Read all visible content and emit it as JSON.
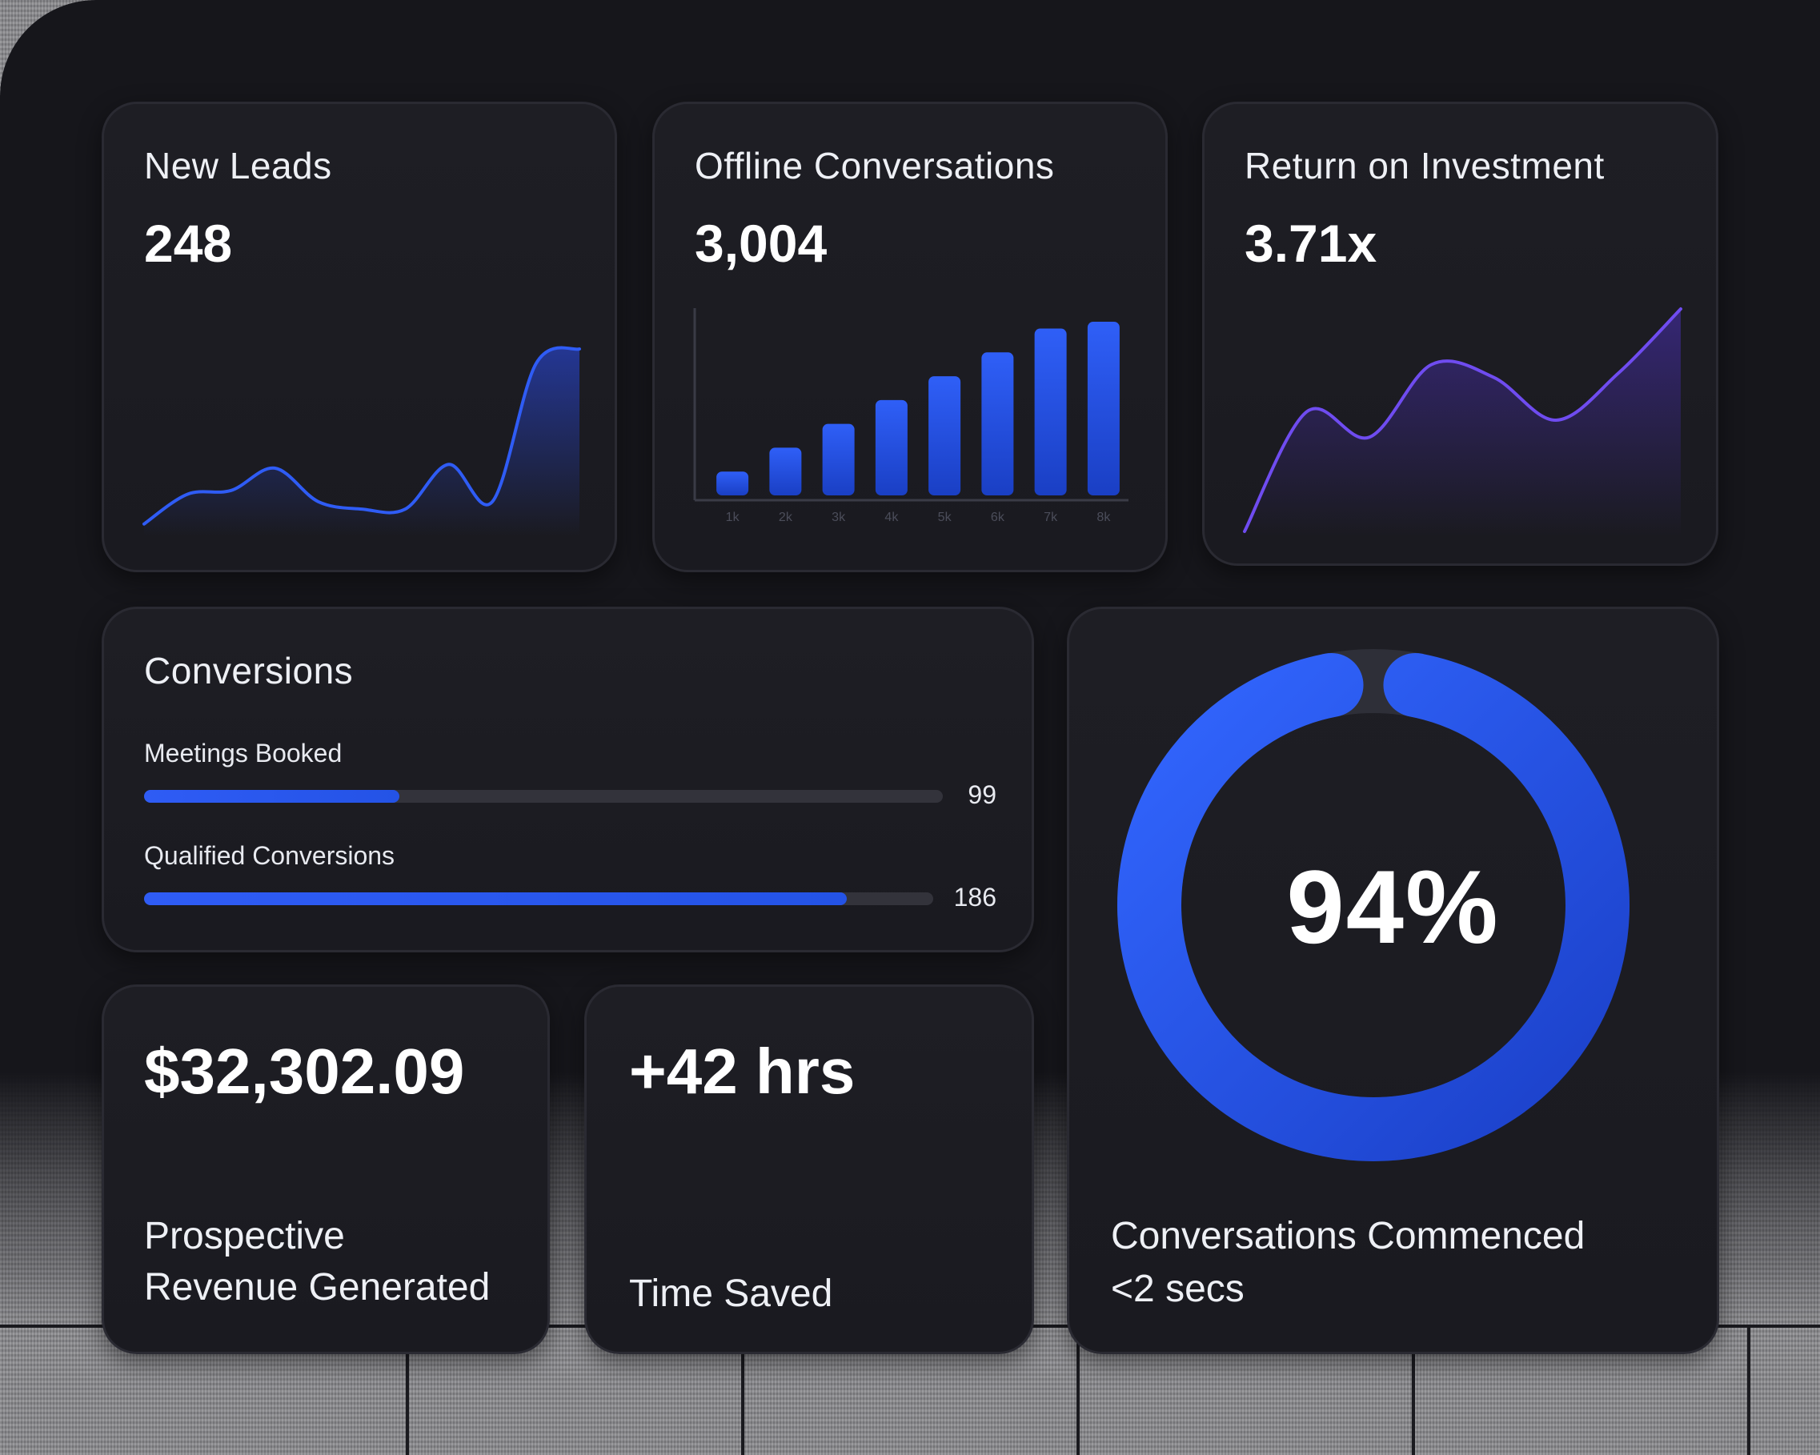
{
  "colors": {
    "accent": "#2f5cf5",
    "accent_dark": "#1c3fc2",
    "roi_line": "#6f4cf0",
    "panel": "#16161b",
    "card": "#1e1e24",
    "track": "#33333b"
  },
  "new_leads": {
    "title": "New Leads",
    "value": "248",
    "chart_data": {
      "type": "area",
      "series": [
        {
          "values": [
            2,
            10,
            11,
            17,
            8,
            6,
            6,
            18,
            8,
            45,
            49
          ]
        }
      ]
    }
  },
  "offline_conversations": {
    "title": "Offline Conversations",
    "value": "3,004",
    "chart_data": {
      "type": "bar",
      "categories": [
        "1k",
        "2k",
        "3k",
        "4k",
        "5k",
        "6k",
        "7k",
        "8k"
      ],
      "values": [
        14,
        28,
        42,
        56,
        70,
        84,
        98,
        102
      ],
      "ylim": [
        0,
        110
      ]
    }
  },
  "roi": {
    "title": "Return on Investment",
    "value": "3.71x",
    "chart_data": {
      "type": "area",
      "series": [
        {
          "values": [
            0,
            28,
            22,
            39,
            36,
            26,
            37,
            52
          ]
        }
      ]
    }
  },
  "conversions": {
    "title": "Conversions",
    "items": [
      {
        "label": "Meetings Booked",
        "value": "99",
        "progress": 0.32
      },
      {
        "label": "Qualified Conversions",
        "value": "186",
        "progress": 0.89
      }
    ]
  },
  "revenue": {
    "value": "$32,302.09",
    "label_line1": "Prospective",
    "label_line2": "Revenue Generated"
  },
  "time_saved": {
    "value": "+42 hrs",
    "label": "Time Saved"
  },
  "conversations_commenced": {
    "value": "94%",
    "percent": 94,
    "label_line1": "Conversations Commenced",
    "label_line2": "<2 secs"
  }
}
